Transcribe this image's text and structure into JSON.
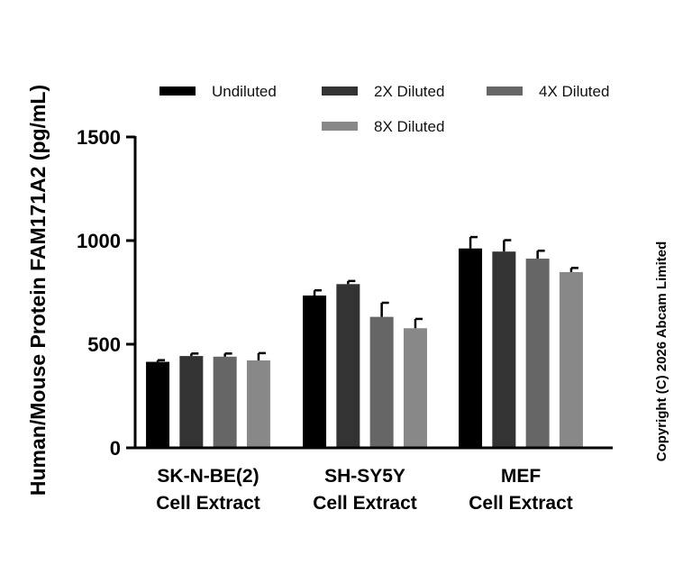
{
  "chart_data": {
    "type": "bar",
    "ylabel": "Human/Mouse Protein FAM171A2 (pg/mL)",
    "xlabel": "",
    "ylim": [
      0,
      1500
    ],
    "yticks": [
      0,
      500,
      1000,
      1500
    ],
    "categories": [
      [
        "SK-N-BE(2)",
        "Cell Extract"
      ],
      [
        "SH-SY5Y",
        "Cell Extract"
      ],
      [
        "MEF",
        "Cell Extract"
      ]
    ],
    "series": [
      {
        "name": "Undiluted",
        "color": "#000000",
        "values": [
          415,
          735,
          962
        ],
        "errors": [
          8,
          25,
          55
        ]
      },
      {
        "name": "2X Diluted",
        "color": "#333333",
        "values": [
          443,
          790,
          947
        ],
        "errors": [
          12,
          15,
          55
        ]
      },
      {
        "name": "4X Diluted",
        "color": "#666666",
        "values": [
          440,
          632,
          913
        ],
        "errors": [
          15,
          68,
          38
        ]
      },
      {
        "name": "8X Diluted",
        "color": "#888888",
        "values": [
          422,
          577,
          848
        ],
        "errors": [
          35,
          45,
          20
        ]
      }
    ],
    "legend_position": "top",
    "grid": false
  },
  "copyright": "Copyright (C) 2026 Abcam Limited"
}
